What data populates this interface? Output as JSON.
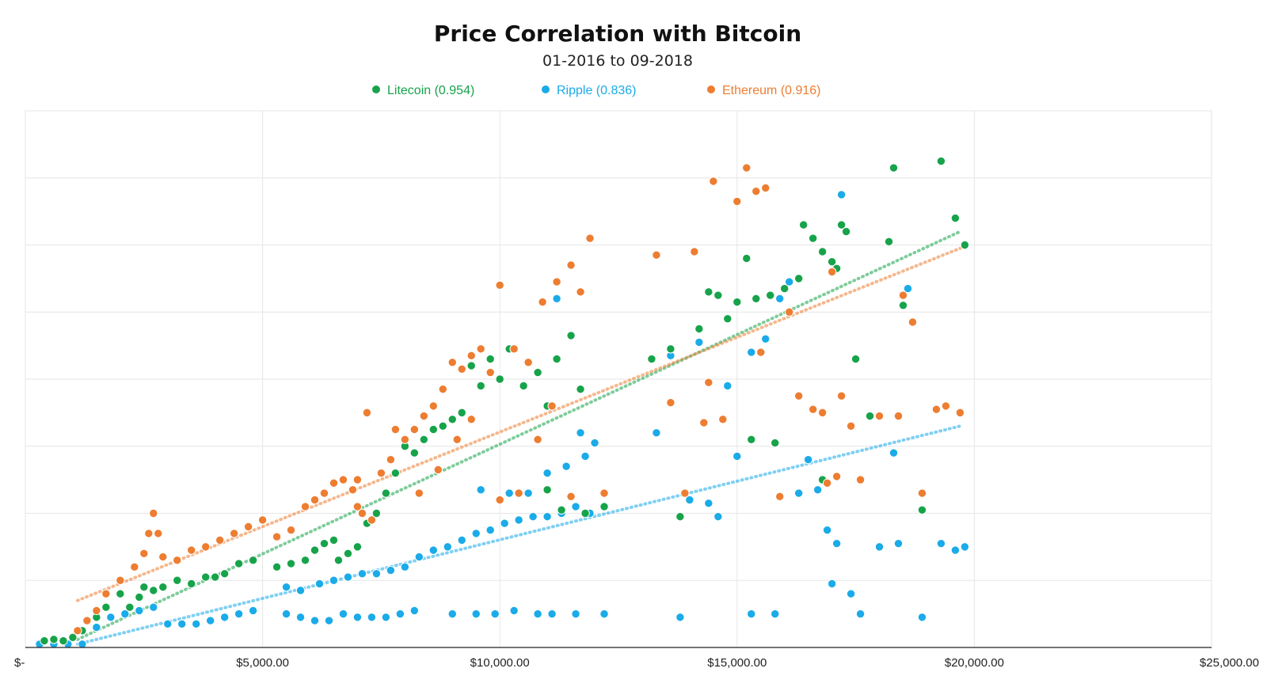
{
  "colors": {
    "litecoin": "#17a34a",
    "ripple": "#1aabe8",
    "ethereum": "#ed7d31",
    "gridline": "#e6e6e6",
    "axis": "#222222"
  },
  "chart_data": {
    "type": "scatter",
    "title": "Price Correlation with Bitcoin",
    "subtitle": "01-2016 to 09-2018",
    "xlabel": "",
    "ylabel": "",
    "xlim": [
      0,
      25000
    ],
    "ylim": [
      0,
      8
    ],
    "x_tick_values": [
      0,
      5000,
      10000,
      15000,
      20000,
      25000
    ],
    "x_tick_labels": [
      "$-",
      "$5,000.00",
      "$10,000.00",
      "$15,000.00",
      "$20,000.00",
      "$25,000.00"
    ],
    "y_gridlines": [
      1,
      2,
      3,
      4,
      5,
      6,
      7
    ],
    "y_tick_labels": [],
    "legend_position": "top",
    "series": [
      {
        "name": "Litecoin",
        "label": "Litecoin (0.954)",
        "r": 0.954,
        "color": "#17a34a",
        "trendline": {
          "x": [
            1100,
            19700
          ],
          "y": [
            0.12,
            6.2
          ]
        },
        "points": [
          [
            400,
            0.1
          ],
          [
            600,
            0.12
          ],
          [
            800,
            0.1
          ],
          [
            1000,
            0.15
          ],
          [
            1200,
            0.25
          ],
          [
            1500,
            0.45
          ],
          [
            1700,
            0.6
          ],
          [
            2000,
            0.8
          ],
          [
            2200,
            0.6
          ],
          [
            2400,
            0.75
          ],
          [
            2500,
            0.9
          ],
          [
            2700,
            0.85
          ],
          [
            2900,
            0.9
          ],
          [
            3200,
            1.0
          ],
          [
            3500,
            0.95
          ],
          [
            3800,
            1.05
          ],
          [
            4000,
            1.05
          ],
          [
            4200,
            1.1
          ],
          [
            4500,
            1.25
          ],
          [
            4800,
            1.3
          ],
          [
            5300,
            1.2
          ],
          [
            5600,
            1.25
          ],
          [
            5900,
            1.3
          ],
          [
            6100,
            1.45
          ],
          [
            6300,
            1.55
          ],
          [
            6500,
            1.6
          ],
          [
            6600,
            1.3
          ],
          [
            6800,
            1.4
          ],
          [
            7000,
            1.5
          ],
          [
            7200,
            1.85
          ],
          [
            7400,
            2.0
          ],
          [
            7600,
            2.3
          ],
          [
            7800,
            2.6
          ],
          [
            8000,
            3.0
          ],
          [
            8200,
            2.9
          ],
          [
            8400,
            3.1
          ],
          [
            8600,
            3.25
          ],
          [
            8800,
            3.3
          ],
          [
            9000,
            3.4
          ],
          [
            9200,
            3.5
          ],
          [
            9400,
            4.2
          ],
          [
            9600,
            3.9
          ],
          [
            9800,
            4.3
          ],
          [
            10000,
            4.0
          ],
          [
            10200,
            4.45
          ],
          [
            10500,
            3.9
          ],
          [
            10800,
            4.1
          ],
          [
            11000,
            3.6
          ],
          [
            11200,
            4.3
          ],
          [
            11500,
            4.65
          ],
          [
            11700,
            3.85
          ],
          [
            11000,
            2.35
          ],
          [
            11300,
            2.05
          ],
          [
            11800,
            2.0
          ],
          [
            12200,
            2.1
          ],
          [
            13200,
            4.3
          ],
          [
            13600,
            4.45
          ],
          [
            13800,
            1.95
          ],
          [
            14200,
            4.75
          ],
          [
            14400,
            5.3
          ],
          [
            14600,
            5.25
          ],
          [
            14800,
            4.9
          ],
          [
            15000,
            5.15
          ],
          [
            15200,
            5.8
          ],
          [
            15400,
            5.2
          ],
          [
            15700,
            5.25
          ],
          [
            16000,
            5.35
          ],
          [
            16300,
            5.5
          ],
          [
            16400,
            6.3
          ],
          [
            16600,
            6.1
          ],
          [
            16800,
            5.9
          ],
          [
            17000,
            5.75
          ],
          [
            17200,
            6.3
          ],
          [
            17500,
            4.3
          ],
          [
            17800,
            3.45
          ],
          [
            18200,
            6.05
          ],
          [
            18300,
            7.15
          ],
          [
            18500,
            5.1
          ],
          [
            18900,
            2.05
          ],
          [
            19300,
            7.25
          ],
          [
            19600,
            6.4
          ],
          [
            19800,
            6.0
          ],
          [
            17300,
            6.2
          ],
          [
            17100,
            5.65
          ],
          [
            15300,
            3.1
          ],
          [
            15800,
            3.05
          ],
          [
            16800,
            2.5
          ]
        ]
      },
      {
        "name": "Ripple",
        "label": "Ripple (0.836)",
        "r": 0.836,
        "color": "#1aabe8",
        "trendline": {
          "x": [
            1100,
            19700
          ],
          "y": [
            0.05,
            3.3
          ]
        },
        "points": [
          [
            300,
            0.05
          ],
          [
            600,
            0.05
          ],
          [
            900,
            0.05
          ],
          [
            1200,
            0.05
          ],
          [
            1500,
            0.3
          ],
          [
            1800,
            0.45
          ],
          [
            2100,
            0.5
          ],
          [
            2400,
            0.55
          ],
          [
            2700,
            0.6
          ],
          [
            3000,
            0.35
          ],
          [
            3300,
            0.35
          ],
          [
            3600,
            0.35
          ],
          [
            3900,
            0.4
          ],
          [
            4200,
            0.45
          ],
          [
            4500,
            0.5
          ],
          [
            4800,
            0.55
          ],
          [
            5500,
            0.5
          ],
          [
            5800,
            0.45
          ],
          [
            6100,
            0.4
          ],
          [
            6400,
            0.4
          ],
          [
            6700,
            0.5
          ],
          [
            7000,
            0.45
          ],
          [
            7300,
            0.45
          ],
          [
            7600,
            0.45
          ],
          [
            7900,
            0.5
          ],
          [
            8200,
            0.55
          ],
          [
            9000,
            0.5
          ],
          [
            9500,
            0.5
          ],
          [
            9900,
            0.5
          ],
          [
            10300,
            0.55
          ],
          [
            10800,
            0.5
          ],
          [
            11100,
            0.5
          ],
          [
            11600,
            0.5
          ],
          [
            12200,
            0.5
          ],
          [
            5500,
            0.9
          ],
          [
            5800,
            0.85
          ],
          [
            6200,
            0.95
          ],
          [
            6500,
            1.0
          ],
          [
            6800,
            1.05
          ],
          [
            7100,
            1.1
          ],
          [
            7400,
            1.1
          ],
          [
            7700,
            1.15
          ],
          [
            8000,
            1.2
          ],
          [
            8300,
            1.35
          ],
          [
            8600,
            1.45
          ],
          [
            8900,
            1.5
          ],
          [
            9200,
            1.6
          ],
          [
            9500,
            1.7
          ],
          [
            9800,
            1.75
          ],
          [
            10100,
            1.85
          ],
          [
            10400,
            1.9
          ],
          [
            10700,
            1.95
          ],
          [
            11000,
            1.95
          ],
          [
            11300,
            2.0
          ],
          [
            11600,
            2.1
          ],
          [
            11900,
            2.0
          ],
          [
            9600,
            2.35
          ],
          [
            10200,
            2.3
          ],
          [
            10600,
            2.3
          ],
          [
            11000,
            2.6
          ],
          [
            11400,
            2.7
          ],
          [
            11800,
            2.85
          ],
          [
            12000,
            3.05
          ],
          [
            11700,
            3.2
          ],
          [
            13300,
            3.2
          ],
          [
            13600,
            4.35
          ],
          [
            14000,
            2.2
          ],
          [
            14200,
            4.55
          ],
          [
            14400,
            2.15
          ],
          [
            14600,
            1.95
          ],
          [
            14800,
            3.9
          ],
          [
            15000,
            2.85
          ],
          [
            15300,
            4.4
          ],
          [
            15600,
            4.6
          ],
          [
            15900,
            5.2
          ],
          [
            16100,
            5.45
          ],
          [
            16500,
            2.8
          ],
          [
            16700,
            2.35
          ],
          [
            16900,
            1.75
          ],
          [
            17000,
            0.95
          ],
          [
            17100,
            1.55
          ],
          [
            17200,
            6.75
          ],
          [
            17400,
            0.8
          ],
          [
            17600,
            0.5
          ],
          [
            18000,
            1.5
          ],
          [
            18400,
            1.55
          ],
          [
            18600,
            5.35
          ],
          [
            18900,
            0.45
          ],
          [
            19300,
            1.55
          ],
          [
            19600,
            1.45
          ],
          [
            19800,
            1.5
          ],
          [
            15300,
            0.5
          ],
          [
            15800,
            0.5
          ],
          [
            16300,
            2.3
          ],
          [
            13800,
            0.45
          ],
          [
            11200,
            5.2
          ],
          [
            18300,
            2.9
          ]
        ]
      },
      {
        "name": "Ethereum",
        "label": "Ethereum (0.916)",
        "r": 0.916,
        "color": "#ed7d31",
        "trendline": {
          "x": [
            1100,
            19700
          ],
          "y": [
            0.7,
            5.95
          ]
        },
        "points": [
          [
            1100,
            0.25
          ],
          [
            1300,
            0.4
          ],
          [
            1500,
            0.55
          ],
          [
            1700,
            0.8
          ],
          [
            2000,
            1.0
          ],
          [
            2300,
            1.2
          ],
          [
            2500,
            1.4
          ],
          [
            2600,
            1.7
          ],
          [
            2700,
            2.0
          ],
          [
            2800,
            1.7
          ],
          [
            2900,
            1.35
          ],
          [
            3200,
            1.3
          ],
          [
            3500,
            1.45
          ],
          [
            3800,
            1.5
          ],
          [
            4100,
            1.6
          ],
          [
            4400,
            1.7
          ],
          [
            4700,
            1.8
          ],
          [
            5000,
            1.9
          ],
          [
            5300,
            1.65
          ],
          [
            5600,
            1.75
          ],
          [
            5900,
            2.1
          ],
          [
            6100,
            2.2
          ],
          [
            6300,
            2.3
          ],
          [
            6500,
            2.45
          ],
          [
            6700,
            2.5
          ],
          [
            6900,
            2.35
          ],
          [
            7000,
            2.1
          ],
          [
            7100,
            2.0
          ],
          [
            7300,
            1.9
          ],
          [
            7500,
            2.6
          ],
          [
            7700,
            2.8
          ],
          [
            7800,
            3.25
          ],
          [
            8000,
            3.1
          ],
          [
            8200,
            3.25
          ],
          [
            8400,
            3.45
          ],
          [
            8600,
            3.6
          ],
          [
            8800,
            3.85
          ],
          [
            9000,
            4.25
          ],
          [
            9200,
            4.15
          ],
          [
            9400,
            4.35
          ],
          [
            9600,
            4.45
          ],
          [
            9800,
            4.1
          ],
          [
            10000,
            5.4
          ],
          [
            10300,
            4.45
          ],
          [
            10600,
            4.25
          ],
          [
            10900,
            5.15
          ],
          [
            11200,
            5.45
          ],
          [
            11500,
            5.7
          ],
          [
            11700,
            5.3
          ],
          [
            11900,
            6.1
          ],
          [
            7200,
            3.5
          ],
          [
            7000,
            2.5
          ],
          [
            8300,
            2.3
          ],
          [
            8700,
            2.65
          ],
          [
            9100,
            3.1
          ],
          [
            9400,
            3.4
          ],
          [
            10000,
            2.2
          ],
          [
            10400,
            2.3
          ],
          [
            10800,
            3.1
          ],
          [
            11100,
            3.6
          ],
          [
            11500,
            2.25
          ],
          [
            12200,
            2.3
          ],
          [
            13300,
            5.85
          ],
          [
            13600,
            3.65
          ],
          [
            14100,
            5.9
          ],
          [
            14300,
            3.35
          ],
          [
            14500,
            6.95
          ],
          [
            14700,
            3.4
          ],
          [
            15000,
            6.65
          ],
          [
            15200,
            7.15
          ],
          [
            15400,
            6.8
          ],
          [
            15600,
            6.85
          ],
          [
            15900,
            2.25
          ],
          [
            16100,
            5.0
          ],
          [
            16300,
            3.75
          ],
          [
            16600,
            3.55
          ],
          [
            16800,
            3.5
          ],
          [
            17000,
            5.6
          ],
          [
            17200,
            3.75
          ],
          [
            17400,
            3.3
          ],
          [
            17600,
            2.5
          ],
          [
            18000,
            3.45
          ],
          [
            18400,
            3.45
          ],
          [
            18500,
            5.25
          ],
          [
            18700,
            4.85
          ],
          [
            18900,
            2.3
          ],
          [
            19200,
            3.55
          ],
          [
            19400,
            3.6
          ],
          [
            19700,
            3.5
          ],
          [
            13900,
            2.3
          ],
          [
            14400,
            3.95
          ],
          [
            15500,
            4.4
          ],
          [
            16900,
            2.45
          ],
          [
            17100,
            2.55
          ]
        ]
      }
    ]
  }
}
